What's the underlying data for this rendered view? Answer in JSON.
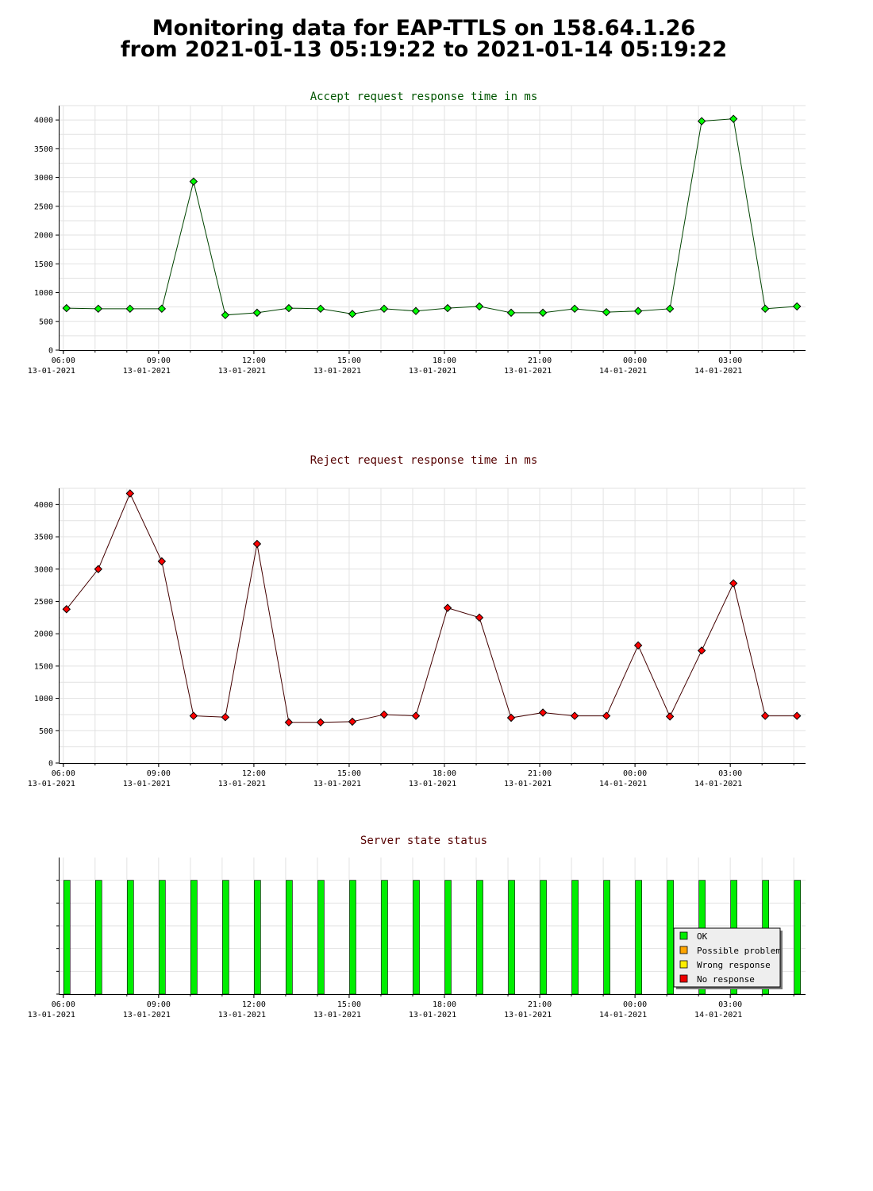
{
  "page": {
    "title_line1": "Monitoring data for EAP-TTLS on 158.64.1.26",
    "title_line2": "from 2021-01-13 05:19:22 to 2021-01-14 05:19:22"
  },
  "colors": {
    "accept": "#00ff00",
    "accept_title": "#005500",
    "accept_line": "#004400",
    "reject": "#ff0000",
    "reject_title": "#550000",
    "reject_line": "#440000",
    "status_title": "#550000",
    "ok": "#00ee00",
    "possible_problem": "#ffa500",
    "wrong_response": "#ffee00",
    "no_response": "#ee0000"
  },
  "x_ticks": [
    {
      "time": "06:00",
      "date": "13-01-2021",
      "hours": 6
    },
    {
      "time": "09:00",
      "date": "13-01-2021",
      "hours": 9
    },
    {
      "time": "12:00",
      "date": "13-01-2021",
      "hours": 12
    },
    {
      "time": "15:00",
      "date": "13-01-2021",
      "hours": 15
    },
    {
      "time": "18:00",
      "date": "13-01-2021",
      "hours": 18
    },
    {
      "time": "21:00",
      "date": "13-01-2021",
      "hours": 21
    },
    {
      "time": "00:00",
      "date": "14-01-2021",
      "hours": 24
    },
    {
      "time": "03:00",
      "date": "14-01-2021",
      "hours": 27
    }
  ],
  "chart_data": [
    {
      "type": "line",
      "title": "Accept request response time in ms",
      "xlim": [
        5.88,
        29.37
      ],
      "ylim": [
        0,
        4250
      ],
      "yticks": [
        0,
        500,
        1000,
        1500,
        2000,
        2500,
        3000,
        3500,
        4000
      ],
      "grid": true,
      "x": [
        6.1,
        7.1,
        8.1,
        9.1,
        10.1,
        11.1,
        12.1,
        13.1,
        14.1,
        15.1,
        16.1,
        17.1,
        18.1,
        19.1,
        20.1,
        21.1,
        22.1,
        23.1,
        24.1,
        25.1,
        26.1,
        27.1,
        28.1,
        29.1
      ],
      "values": [
        730,
        720,
        720,
        720,
        2930,
        610,
        650,
        730,
        720,
        630,
        720,
        680,
        730,
        760,
        650,
        650,
        720,
        660,
        680,
        720,
        3980,
        4020,
        720,
        760
      ]
    },
    {
      "type": "line",
      "title": "Reject request response time in ms",
      "xlim": [
        5.88,
        29.37
      ],
      "ylim": [
        0,
        4250
      ],
      "yticks": [
        0,
        500,
        1000,
        1500,
        2000,
        2500,
        3000,
        3500,
        4000
      ],
      "grid": true,
      "x": [
        6.1,
        7.1,
        8.1,
        9.1,
        10.1,
        11.1,
        12.1,
        13.1,
        14.1,
        15.1,
        16.1,
        17.1,
        18.1,
        19.1,
        20.1,
        21.1,
        22.1,
        23.1,
        24.1,
        25.1,
        26.1,
        27.1,
        28.1,
        29.1
      ],
      "values": [
        2380,
        3000,
        4170,
        3120,
        730,
        710,
        3390,
        630,
        630,
        640,
        750,
        730,
        2400,
        2250,
        700,
        780,
        730,
        730,
        1820,
        720,
        1740,
        2780,
        730,
        730
      ]
    },
    {
      "type": "bar",
      "title": "Server state status",
      "xlim": [
        5.88,
        29.37
      ],
      "x": [
        6.1,
        7.1,
        8.1,
        9.1,
        10.1,
        11.1,
        12.1,
        13.1,
        14.1,
        15.1,
        16.1,
        17.1,
        18.1,
        19.1,
        20.1,
        21.1,
        22.1,
        23.1,
        24.1,
        25.1,
        26.1,
        27.1,
        28.1,
        29.1
      ],
      "states": [
        "OK",
        "OK",
        "OK",
        "OK",
        "OK",
        "OK",
        "OK",
        "OK",
        "OK",
        "OK",
        "OK",
        "OK",
        "OK",
        "OK",
        "OK",
        "OK",
        "OK",
        "OK",
        "OK",
        "OK",
        "OK",
        "OK",
        "OK",
        "OK"
      ],
      "legend": [
        "OK",
        "Possible problem",
        "Wrong response",
        "No response"
      ],
      "legend_position": "bottom-right"
    }
  ]
}
